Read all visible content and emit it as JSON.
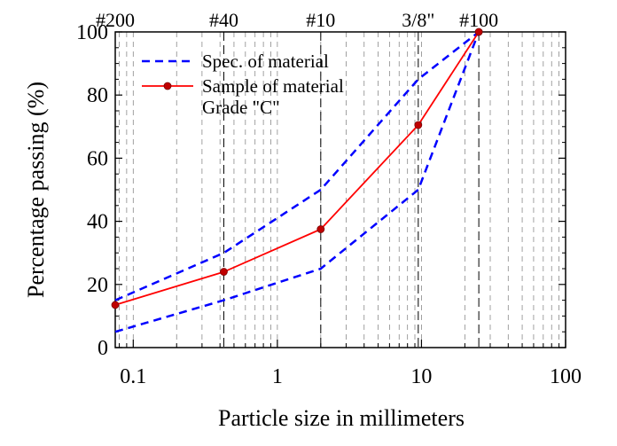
{
  "chart_data": {
    "type": "line",
    "title": "",
    "xlabel": "Particle size in millimeters",
    "ylabel": "Percentage passing (%)",
    "x_scale": "log",
    "xlim": [
      0.075,
      100
    ],
    "ylim": [
      0,
      100
    ],
    "x_tick_labels": [
      "0.1",
      "1",
      "10",
      "100"
    ],
    "x_ticks": [
      0.1,
      1,
      10,
      100
    ],
    "y_ticks": [
      0,
      20,
      40,
      60,
      80,
      100
    ],
    "y_tick_labels": [
      "0",
      "20",
      "40",
      "60",
      "80",
      "100"
    ],
    "grid": "vertical dashed at log minor ticks",
    "sieve_markers": [
      {
        "label": "#200",
        "x": 0.075
      },
      {
        "label": "#40",
        "x": 0.425
      },
      {
        "label": "#10",
        "x": 2.0
      },
      {
        "label": "3/8\"",
        "x": 9.5
      },
      {
        "label": "#100",
        "x": 25
      }
    ],
    "legend": {
      "placement": "top-left",
      "entries": [
        "Spec. of material",
        "Sample of material",
        "Grade \"C\""
      ]
    },
    "series": [
      {
        "name": "Spec. of material",
        "style": "dashed",
        "color": "#0000ff",
        "x": [
          0.075,
          0.425,
          2.0,
          9.5,
          25
        ],
        "y": [
          15,
          30,
          50,
          85,
          100
        ]
      },
      {
        "name": "Spec. of material",
        "style": "dashed",
        "color": "#0000ff",
        "x": [
          0.075,
          0.425,
          2.0,
          9.5,
          25
        ],
        "y": [
          5,
          15,
          25,
          50,
          100
        ]
      },
      {
        "name": "Sample of material",
        "style": "solid-markers",
        "color": "#ff0000",
        "marker_color": "#c00000",
        "x": [
          0.075,
          0.425,
          2.0,
          9.5,
          25
        ],
        "y": [
          13.5,
          24,
          37.5,
          70.5,
          100
        ]
      }
    ]
  }
}
